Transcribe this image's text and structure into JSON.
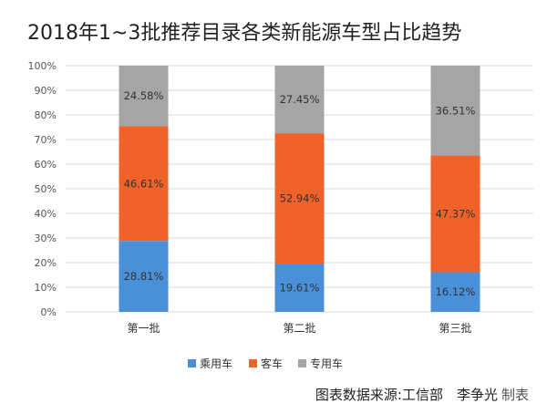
{
  "chart_data": {
    "type": "bar",
    "stacked": true,
    "title": "2018年1~3批推荐目录各类新能源车型占比趋势",
    "categories": [
      "第一批",
      "第二批",
      "第三批"
    ],
    "series": [
      {
        "name": "乘用车",
        "color": "#4a90d9",
        "values": [
          28.81,
          19.61,
          16.12
        ],
        "labels": [
          "28.81%",
          "19.61%",
          "16.12%"
        ]
      },
      {
        "name": "客车",
        "color": "#f0622a",
        "values": [
          46.61,
          52.94,
          47.37
        ],
        "labels": [
          "46.61%",
          "52.94%",
          "47.37%"
        ]
      },
      {
        "name": "专用车",
        "color": "#a5a5a5",
        "values": [
          24.58,
          27.45,
          36.51
        ],
        "labels": [
          "24.58%",
          "27.45%",
          "36.51%"
        ]
      }
    ],
    "yticks": [
      "0%",
      "10%",
      "20%",
      "30%",
      "40%",
      "50%",
      "60%",
      "70%",
      "80%",
      "90%",
      "100%"
    ],
    "ylim": [
      0,
      100
    ],
    "grid": true,
    "legend": "bottom"
  },
  "credit": {
    "source": "图表数据来源:工信部　李争光",
    "suffix": "制表"
  }
}
